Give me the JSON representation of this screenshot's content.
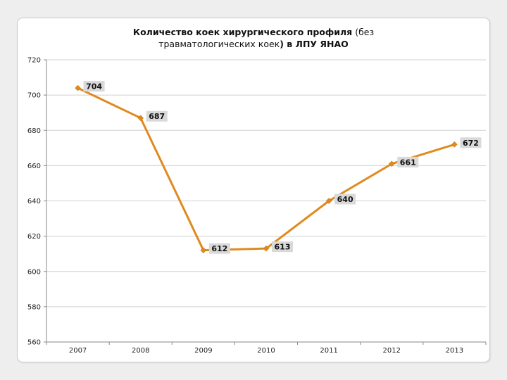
{
  "chart_data": {
    "type": "line",
    "title": "Количество  коек хирургического профиля (без травматологических коек) в ЛПУ ЯНАО",
    "title_parts": {
      "bold_1": "Количество  коек хирургического профиля",
      "normal_1": " (без",
      "normal_2": "травматологических коек",
      "bold_2": ") в ЛПУ ЯНАО"
    },
    "xlabel": "",
    "ylabel": "",
    "categories": [
      "2007",
      "2008",
      "2009",
      "2010",
      "2011",
      "2012",
      "2013"
    ],
    "series": [
      {
        "values": [
          704,
          687,
          612,
          613,
          640,
          661,
          672
        ],
        "color": "#E08A1E"
      }
    ],
    "ylim": [
      560,
      720
    ],
    "yticks": [
      560,
      580,
      600,
      620,
      640,
      660,
      680,
      700,
      720
    ],
    "grid": true,
    "legend": "none",
    "colors": {
      "line": "#E08A1E",
      "grid": "#d0d0d0",
      "label_bg": "#d9d9d9"
    }
  }
}
